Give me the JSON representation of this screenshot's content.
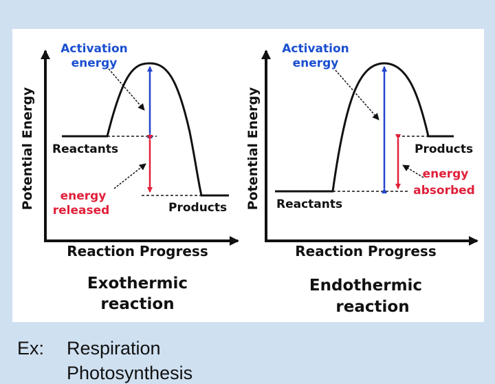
{
  "colors": {
    "background": "#cfe0f1",
    "panel": "#ffffff",
    "curve": "#111111",
    "activation_arrow": "#2244cc",
    "energy_arrow": "#e0203a",
    "label_blue": "#1a4fd0",
    "label_red": "#e0203a"
  },
  "exothermic": {
    "ylabel": "Potential Energy",
    "xlabel": "Reaction Progress",
    "activation_label": [
      "Activation",
      "energy"
    ],
    "reactants_label": "Reactants",
    "products_label": "Products",
    "energy_label": [
      "energy",
      "released"
    ],
    "caption": [
      "Exothermic",
      "reaction"
    ]
  },
  "endothermic": {
    "ylabel": "Potential Energy",
    "xlabel": "Reaction Progress",
    "activation_label": [
      "Activation",
      "energy"
    ],
    "reactants_label": "Reactants",
    "products_label": "Products",
    "energy_label": [
      "energy",
      "absorbed"
    ],
    "caption": [
      "Endothermic",
      "reaction"
    ]
  },
  "examples": {
    "label": "Ex:",
    "items": [
      "Respiration",
      "Photosynthesis"
    ]
  }
}
